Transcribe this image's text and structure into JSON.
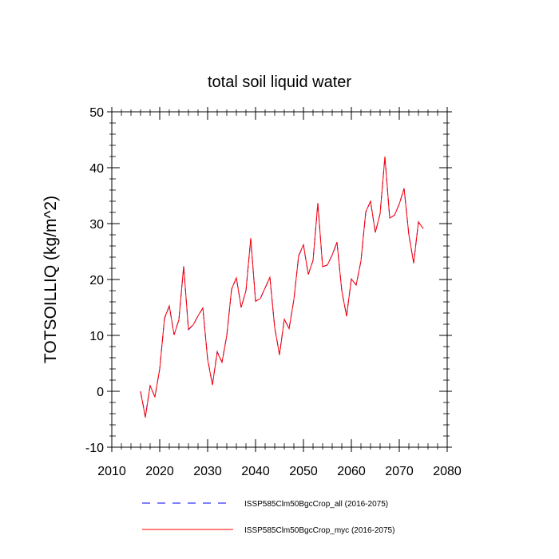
{
  "chart_data": {
    "type": "line",
    "title": "total soil liquid water",
    "xlabel": "",
    "ylabel": "TOTSOILLIQ  (kg/m^2)",
    "xlim": [
      2010,
      2080
    ],
    "ylim": [
      -10,
      50
    ],
    "xticks": [
      2010,
      2020,
      2030,
      2040,
      2050,
      2060,
      2070,
      2080
    ],
    "yticks": [
      -10,
      0,
      10,
      20,
      30,
      40,
      50
    ],
    "x_tick_labels": [
      "2010",
      "2020",
      "2030",
      "2040",
      "2050",
      "2060",
      "2070",
      "2080"
    ],
    "y_tick_labels": [
      "-10",
      "0",
      "10",
      "20",
      "30",
      "40",
      "50"
    ],
    "grid": false,
    "legend_position": "bottom",
    "x": [
      2016,
      2017,
      2018,
      2019,
      2020,
      2021,
      2022,
      2023,
      2024,
      2025,
      2026,
      2027,
      2028,
      2029,
      2030,
      2031,
      2032,
      2033,
      2034,
      2035,
      2036,
      2037,
      2038,
      2039,
      2040,
      2041,
      2042,
      2043,
      2044,
      2045,
      2046,
      2047,
      2048,
      2049,
      2050,
      2051,
      2052,
      2053,
      2054,
      2055,
      2056,
      2057,
      2058,
      2059,
      2060,
      2061,
      2062,
      2063,
      2064,
      2065,
      2066,
      2067,
      2068,
      2069,
      2070,
      2071,
      2072,
      2073,
      2074,
      2075
    ],
    "series": [
      {
        "name": "ISSP585Clm50BgcCrop_all (2016-2075)",
        "color": "#0000ff",
        "dash": "dashed",
        "values": [
          0.0,
          -4.5,
          1.0,
          -1.0,
          4.0,
          13.0,
          15.2,
          10.1,
          12.8,
          22.3,
          11.0,
          11.9,
          13.5,
          14.9,
          5.8,
          1.2,
          7.1,
          5.2,
          10.0,
          18.2,
          20.3,
          15.0,
          18.0,
          27.3,
          16.1,
          16.6,
          18.5,
          20.3,
          11.4,
          6.6,
          12.9,
          11.2,
          16.4,
          24.2,
          26.2,
          20.9,
          23.4,
          33.6,
          22.3,
          22.6,
          24.4,
          26.6,
          18.0,
          13.5,
          20.1,
          19.0,
          23.3,
          32.0,
          34.0,
          28.4,
          31.8,
          41.9,
          31.0,
          31.5,
          33.5,
          36.3,
          28.0,
          23.0,
          30.3,
          29.1
        ]
      },
      {
        "name": "ISSP585Clm50BgcCrop_myc (2016-2075)",
        "color": "#ff0000",
        "dash": "solid",
        "values": [
          0.0,
          -4.7,
          1.0,
          -1.0,
          4.0,
          13.1,
          15.3,
          10.1,
          12.8,
          22.4,
          11.1,
          11.9,
          13.5,
          14.9,
          5.7,
          1.1,
          7.0,
          5.2,
          10.0,
          18.3,
          20.3,
          15.0,
          18.0,
          27.4,
          16.1,
          16.6,
          18.5,
          20.4,
          11.4,
          6.5,
          12.9,
          11.2,
          16.4,
          24.3,
          26.2,
          20.9,
          23.4,
          33.7,
          22.3,
          22.6,
          24.4,
          26.7,
          18.0,
          13.4,
          20.1,
          19.0,
          23.3,
          32.1,
          34.0,
          28.4,
          31.8,
          42.0,
          31.0,
          31.5,
          33.5,
          36.3,
          28.0,
          22.9,
          30.3,
          29.1
        ]
      }
    ]
  }
}
